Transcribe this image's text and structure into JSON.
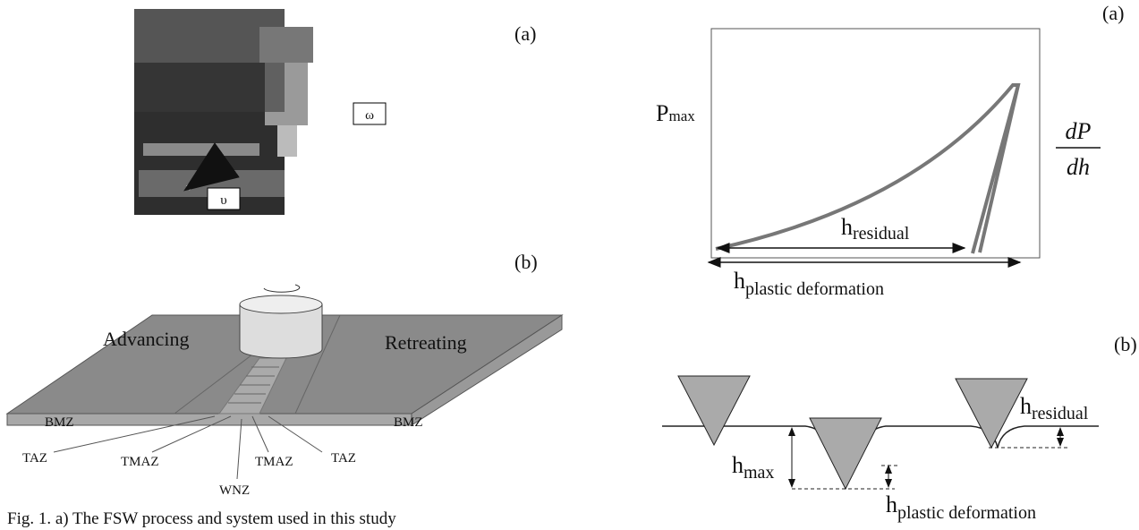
{
  "left": {
    "panel_a": {
      "label": "(a)",
      "omega": "ω",
      "upsilon": "υ"
    },
    "panel_b": {
      "label": "(b)",
      "advancing": "Advancing",
      "retreating": "Retreating",
      "zones": [
        "BMZ",
        "BMZ",
        "TAZ",
        "TMAZ",
        "WNZ",
        "TMAZ",
        "TAZ"
      ]
    },
    "caption": "Fig. 1. a) The FSW process and system used in this study"
  },
  "right": {
    "panel_a": {
      "label": "(a)",
      "p_max": {
        "base": "P",
        "sub": "max"
      },
      "slope": {
        "num": "dP",
        "den": "dh"
      },
      "h_residual": {
        "base": "h",
        "sub": "residual"
      },
      "h_plastic": {
        "base": "h",
        "sub": "plastic deformation"
      }
    },
    "panel_b": {
      "label": "(b)",
      "h_max": {
        "base": "h",
        "sub": "max"
      },
      "h_residual": {
        "base": "h",
        "sub": "residual"
      },
      "h_plastic": {
        "base": "h",
        "sub": "plastic deformation"
      }
    }
  }
}
